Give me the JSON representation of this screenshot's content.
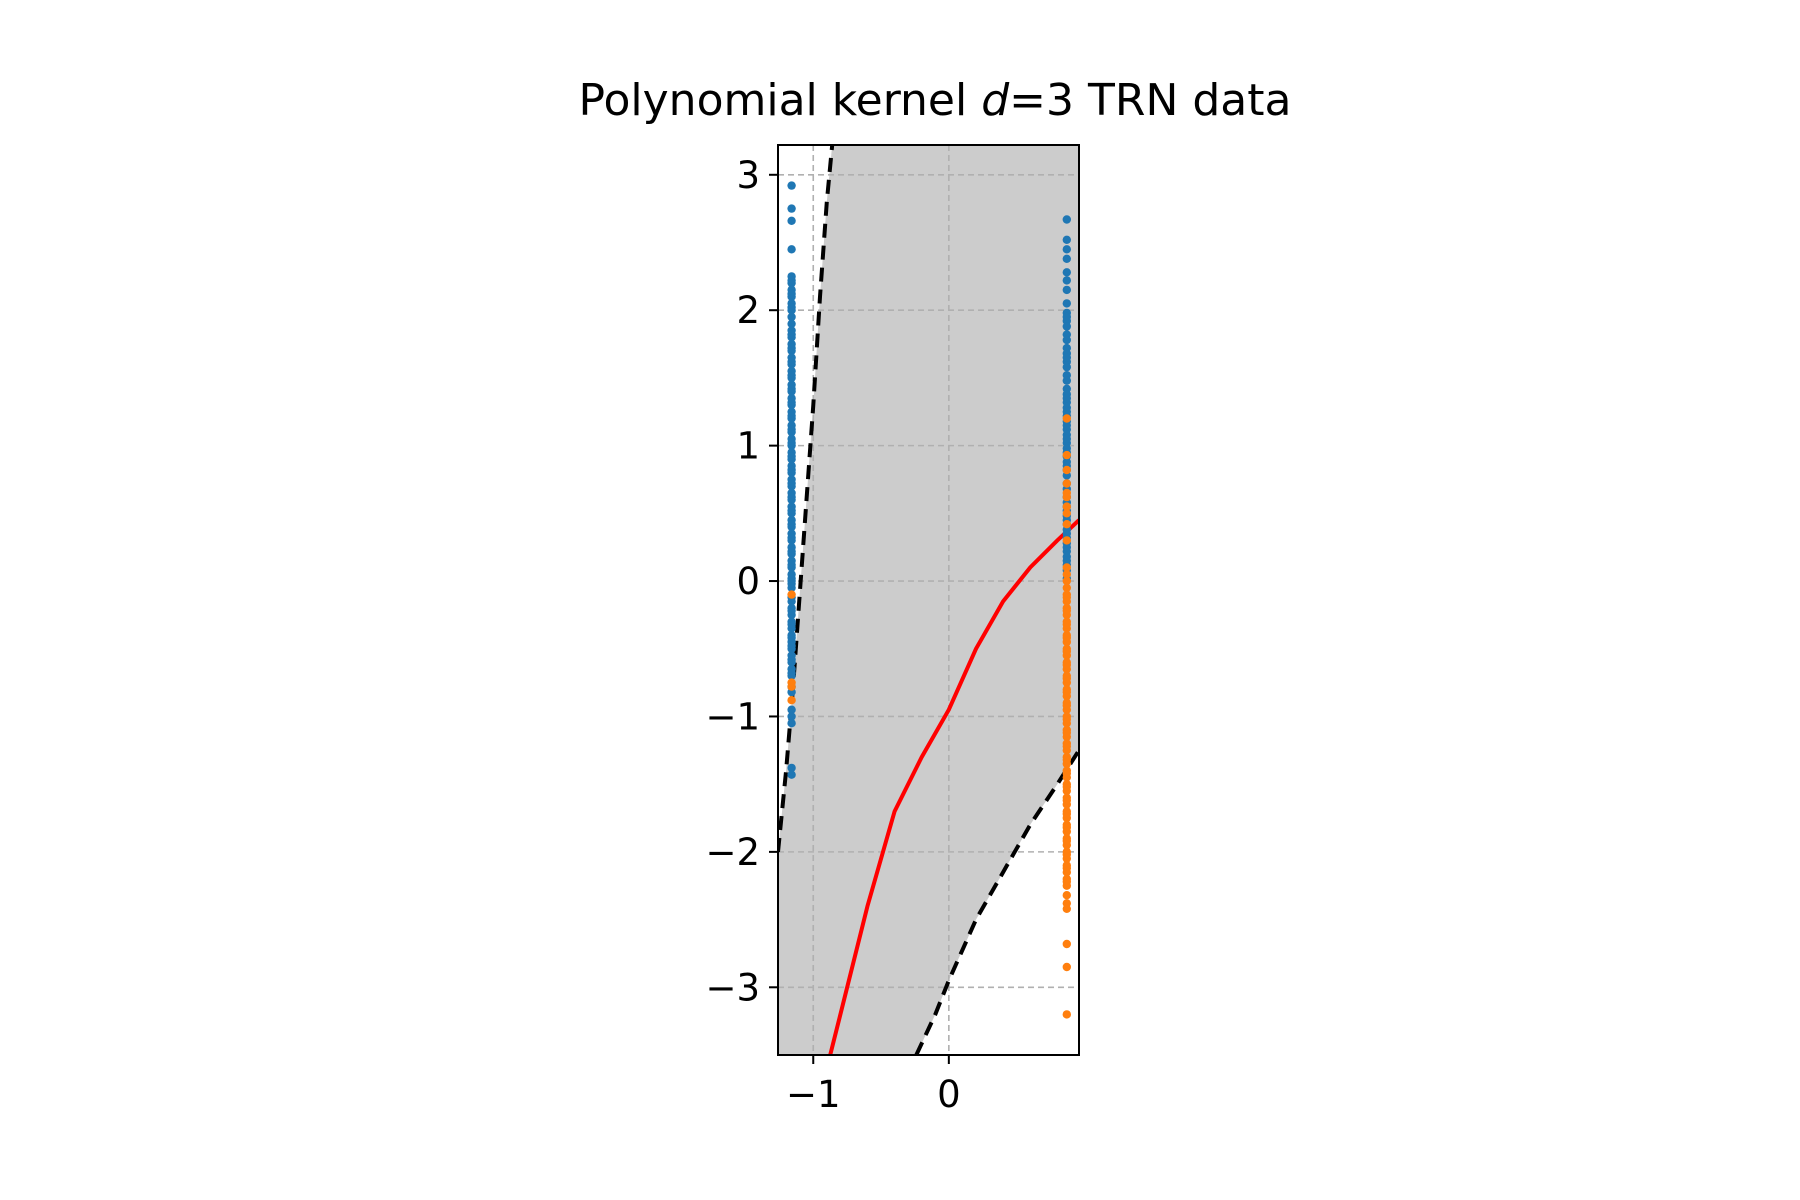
{
  "chart_data": {
    "type": "scatter",
    "title": {
      "prefix": "Polynomial kernel ",
      "italic": "d",
      "suffix": "=3 TRN data"
    },
    "xlabel": "",
    "ylabel": "",
    "xlim": [
      -1.26,
      0.96
    ],
    "ylim": [
      -3.5,
      3.22
    ],
    "xticks": [
      {
        "value": -1,
        "label": "−1"
      },
      {
        "value": 0,
        "label": "0"
      }
    ],
    "yticks": [
      {
        "value": 3,
        "label": "3"
      },
      {
        "value": 2,
        "label": "2"
      },
      {
        "value": 1,
        "label": "1"
      },
      {
        "value": 0,
        "label": "0"
      },
      {
        "value": -1,
        "label": "−1"
      },
      {
        "value": -2,
        "label": "−2"
      },
      {
        "value": -3,
        "label": "−3"
      }
    ],
    "grid": true,
    "legend": "none",
    "colors": {
      "class_a": "#1f77b4",
      "class_b": "#ff7f0e",
      "decision_boundary": "#ff0000",
      "margin": "#000000",
      "margin_region": "#cccccc",
      "grid": "#b0b0b0"
    },
    "decision_boundary": {
      "x": [
        -0.9,
        -0.8,
        -0.6,
        -0.4,
        -0.2,
        0.0,
        0.2,
        0.4,
        0.6,
        0.8,
        0.96
      ],
      "y": [
        -3.6,
        -3.2,
        -2.4,
        -1.7,
        -1.3,
        -0.95,
        -0.5,
        -0.15,
        0.1,
        0.3,
        0.45
      ]
    },
    "margin_upper": {
      "x": [
        -1.26,
        -1.2,
        -1.15,
        -1.1,
        -1.05,
        -1.0,
        -0.95,
        -0.9,
        -0.86
      ],
      "y": [
        -2.0,
        -1.4,
        -0.8,
        -0.1,
        0.6,
        1.3,
        2.1,
        2.8,
        3.22
      ]
    },
    "margin_lower": {
      "x": [
        -0.24,
        -0.1,
        0.0,
        0.2,
        0.4,
        0.6,
        0.8,
        0.96
      ],
      "y": [
        -3.5,
        -3.2,
        -2.95,
        -2.5,
        -2.15,
        -1.8,
        -1.5,
        -1.25
      ]
    },
    "series": [
      {
        "x": [
          -1.16,
          -1.16,
          -1.16,
          -1.16,
          -1.16,
          -1.16,
          -1.16,
          -1.16,
          -1.16,
          -1.16,
          -1.16,
          -1.16,
          -1.16,
          -1.16,
          -1.16,
          -1.16,
          -1.16,
          -1.16,
          -1.16,
          -1.16,
          -1.16,
          -1.16,
          -1.16,
          -1.16,
          -1.16,
          -1.16,
          -1.16,
          -1.16,
          -1.16,
          -1.16,
          -1.16,
          -1.16,
          -1.16,
          -1.16,
          -1.16,
          -1.16,
          -1.16,
          -1.16,
          -1.16,
          -1.16,
          -1.16,
          -1.16,
          -1.16,
          -1.16,
          -1.16,
          -1.16,
          -1.16,
          -1.16,
          -1.16,
          -1.16,
          -1.16,
          -1.16,
          -1.16,
          -1.16,
          -1.16,
          -1.16,
          -1.16,
          -1.16,
          -1.16,
          -1.16,
          -1.16,
          -1.16,
          -1.16,
          -1.16,
          -1.16,
          -1.16,
          -1.16,
          -1.16,
          -1.16,
          -1.16,
          -1.16,
          -1.16,
          -1.16,
          -1.16,
          -1.16,
          -1.16,
          -1.16,
          -1.16,
          -1.16,
          -1.16,
          -1.16,
          -1.16,
          -1.16,
          -1.16,
          -1.16,
          -1.16,
          -1.16,
          -1.16,
          -1.16,
          -1.16,
          -1.16,
          -1.16,
          -1.16,
          -1.16,
          -1.16,
          -1.16,
          -1.16,
          -1.16,
          -1.16,
          -1.16,
          0.87,
          0.87,
          0.87,
          0.87,
          0.87,
          0.87,
          0.87,
          0.87,
          0.87,
          0.87,
          0.87,
          0.87,
          0.87,
          0.87,
          0.87,
          0.87,
          0.87,
          0.87,
          0.87,
          0.87,
          0.87,
          0.87,
          0.87,
          0.87,
          0.87,
          0.87,
          0.87,
          0.87,
          0.87,
          0.87,
          0.87,
          0.87,
          0.87,
          0.87,
          0.87,
          0.87,
          0.87,
          0.87,
          0.87,
          0.87,
          0.87,
          0.87,
          0.87,
          0.87,
          0.87,
          0.87,
          0.87,
          0.87,
          0.87,
          0.87,
          0.87,
          0.87,
          0.87,
          0.87,
          0.87,
          0.87,
          0.87,
          0.87,
          0.87,
          0.87,
          0.87
        ],
        "y": [
          2.92,
          2.75,
          2.66,
          2.45,
          2.25,
          2.2,
          2.15,
          2.1,
          2.05,
          2.0,
          1.95,
          1.9,
          1.85,
          1.8,
          1.75,
          1.7,
          1.65,
          1.6,
          1.55,
          1.5,
          1.45,
          1.4,
          1.35,
          1.3,
          1.25,
          1.2,
          1.15,
          1.1,
          1.05,
          1.0,
          0.95,
          0.9,
          0.85,
          0.8,
          0.75,
          0.7,
          0.65,
          0.6,
          0.55,
          0.5,
          0.45,
          0.4,
          0.35,
          0.3,
          0.25,
          0.2,
          0.15,
          0.1,
          0.05,
          0.0,
          -0.05,
          -0.15,
          -0.2,
          -0.25,
          -0.3,
          -0.35,
          -0.4,
          -0.45,
          -0.5,
          -0.55,
          -0.6,
          -0.65,
          -0.7,
          -0.78,
          -0.82,
          -0.95,
          -1.0,
          -1.05,
          -1.38,
          -1.43,
          2.22,
          1.72,
          1.52,
          1.22,
          0.82,
          0.52,
          0.32,
          0.02,
          -0.22,
          -0.42,
          2.12,
          1.62,
          1.32,
          1.12,
          0.92,
          0.62,
          0.42,
          0.12,
          -0.12,
          -0.32,
          2.02,
          1.82,
          1.42,
          1.02,
          0.72,
          0.22,
          -0.02,
          -0.48,
          -0.58,
          -0.68,
          2.67,
          2.52,
          2.45,
          2.38,
          2.22,
          2.15,
          2.05,
          1.98,
          1.92,
          1.88,
          1.82,
          1.78,
          1.72,
          1.68,
          1.62,
          1.58,
          1.52,
          1.48,
          1.42,
          1.38,
          1.32,
          1.28,
          1.22,
          1.18,
          1.12,
          1.08,
          1.02,
          0.98,
          0.92,
          0.88,
          0.82,
          0.78,
          0.72,
          0.68,
          0.62,
          0.58,
          0.52,
          0.48,
          0.42,
          0.38,
          0.32,
          0.28,
          0.22,
          0.18,
          0.12,
          0.08,
          0.02,
          2.28,
          1.95,
          1.65,
          1.35,
          1.15,
          0.95,
          0.85,
          0.55,
          0.45,
          0.35,
          0.25,
          0.15,
          1.25,
          1.05
        ]
      },
      {
        "x": [
          -1.16,
          -1.16,
          -1.16,
          -1.16,
          0.87,
          0.87,
          0.87,
          0.87,
          0.87,
          0.87,
          0.87,
          0.87,
          0.87,
          0.87,
          0.87,
          0.87,
          0.87,
          0.87,
          0.87,
          0.87,
          0.87,
          0.87,
          0.87,
          0.87,
          0.87,
          0.87,
          0.87,
          0.87,
          0.87,
          0.87,
          0.87,
          0.87,
          0.87,
          0.87,
          0.87,
          0.87,
          0.87,
          0.87,
          0.87,
          0.87,
          0.87,
          0.87,
          0.87,
          0.87,
          0.87,
          0.87,
          0.87,
          0.87,
          0.87,
          0.87,
          0.87,
          0.87,
          0.87,
          0.87,
          0.87,
          0.87,
          0.87,
          0.87,
          0.87,
          0.87,
          0.87,
          0.87,
          0.87,
          0.87,
          0.87,
          0.87,
          0.87,
          0.87,
          0.87,
          0.87,
          0.87,
          0.87,
          0.87,
          0.87,
          0.87,
          0.87,
          0.87,
          0.87,
          0.87,
          0.87,
          0.87,
          0.87,
          0.87,
          0.87,
          0.87,
          0.87,
          0.87,
          0.87,
          0.87,
          0.87
        ],
        "y": [
          -0.1,
          -0.75,
          -0.88,
          -0.78,
          1.2,
          0.93,
          0.72,
          0.65,
          0.55,
          0.5,
          0.3,
          0.1,
          0.05,
          0.0,
          -0.05,
          -0.1,
          -0.15,
          -0.2,
          -0.25,
          -0.3,
          -0.35,
          -0.4,
          -0.45,
          -0.5,
          -0.55,
          -0.6,
          -0.65,
          -0.7,
          -0.75,
          -0.8,
          -0.85,
          -0.9,
          -0.95,
          -1.0,
          -1.05,
          -1.1,
          -1.15,
          -1.2,
          -1.25,
          -1.3,
          -1.35,
          -1.4,
          -1.45,
          -1.5,
          -1.55,
          -1.6,
          -1.65,
          -1.7,
          -1.75,
          -1.8,
          -1.85,
          -1.9,
          -1.95,
          -2.0,
          -2.05,
          -2.1,
          -2.15,
          -2.2,
          -2.25,
          -2.32,
          -2.38,
          -2.42,
          -2.68,
          -2.85,
          -3.2,
          0.42,
          0.62,
          0.82,
          -0.22,
          -0.42,
          -0.62,
          -0.82,
          -1.02,
          -1.22,
          -1.42,
          -1.62,
          -1.82,
          -2.02,
          -2.22,
          -0.12,
          -0.32,
          -0.52,
          -0.72,
          -0.92,
          -1.12,
          -1.32,
          -1.52,
          -1.72,
          -1.92,
          -2.12
        ]
      }
    ]
  }
}
